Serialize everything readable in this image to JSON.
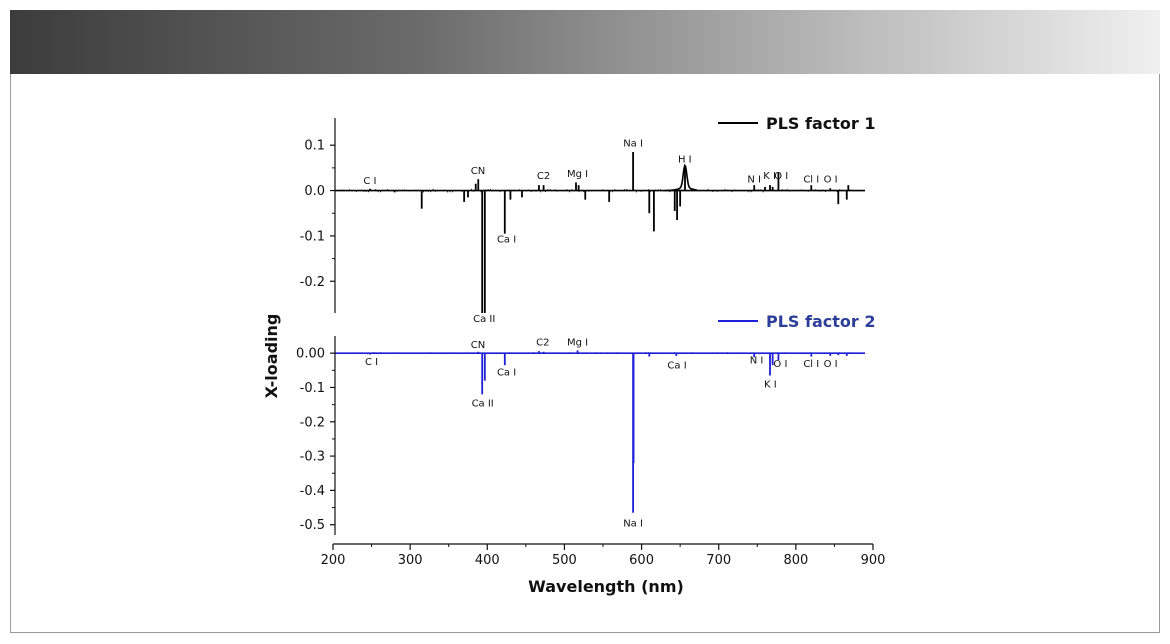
{
  "colors": {
    "series1": "#000000",
    "series2": "#1f1fd6",
    "legend2_text": "#2c3e9a"
  },
  "chart_data": {
    "type": "line",
    "xlabel": "Wavelength (nm)",
    "ylabel": "X-loading",
    "xlim": [
      200,
      900
    ],
    "xticks": [
      "200",
      "300",
      "400",
      "500",
      "600",
      "700",
      "800",
      "900"
    ],
    "panels": [
      {
        "name": "PLS factor 1",
        "ylim": [
          -0.27,
          0.16
        ],
        "yticks": [
          {
            "v": 0.1,
            "label": "0.1"
          },
          {
            "v": 0.0,
            "label": "0.0"
          },
          {
            "v": -0.1,
            "label": "-0.1"
          },
          {
            "v": -0.2,
            "label": "-0.2"
          }
        ],
        "peaks": [
          [
            247.9,
            0.004
          ],
          [
            280,
            -0.004
          ],
          [
            315,
            -0.04
          ],
          [
            370,
            -0.025
          ],
          [
            375,
            -0.015
          ],
          [
            385,
            0.015
          ],
          [
            388.3,
            0.025
          ],
          [
            393.4,
            -0.27
          ],
          [
            396.8,
            -0.27
          ],
          [
            422.7,
            -0.095
          ],
          [
            430,
            -0.02
          ],
          [
            445,
            -0.015
          ],
          [
            467,
            0.012
          ],
          [
            473,
            0.012
          ],
          [
            515,
            0.018
          ],
          [
            518.4,
            0.012
          ],
          [
            527,
            -0.02
          ],
          [
            558,
            -0.025
          ],
          [
            589,
            0.085
          ],
          [
            610,
            -0.05
          ],
          [
            616,
            -0.09
          ],
          [
            643,
            -0.045
          ],
          [
            646,
            -0.065
          ],
          [
            650,
            -0.035
          ],
          [
            656.3,
            0.05
          ],
          [
            746,
            0.012
          ],
          [
            760,
            0.008
          ],
          [
            766.5,
            0.012
          ],
          [
            769.9,
            0.008
          ],
          [
            777.4,
            0.04
          ],
          [
            820,
            0.012
          ],
          [
            844.6,
            0.005
          ],
          [
            855,
            -0.03
          ],
          [
            866,
            -0.02
          ],
          [
            868,
            0.012
          ]
        ],
        "annotations": [
          {
            "label": "C I",
            "x": 247.9,
            "y": 0.015
          },
          {
            "label": "CN",
            "x": 388,
            "y": 0.036
          },
          {
            "label": "Ca II",
            "x": 396,
            "y": -0.29
          },
          {
            "label": "Ca I",
            "x": 425,
            "y": -0.115
          },
          {
            "label": "C2",
            "x": 473,
            "y": 0.025
          },
          {
            "label": "Mg I",
            "x": 517,
            "y": 0.03
          },
          {
            "label": "Na I",
            "x": 589,
            "y": 0.097
          },
          {
            "label": "H I",
            "x": 656,
            "y": 0.062
          },
          {
            "label": "N I",
            "x": 746,
            "y": 0.018
          },
          {
            "label": "K I",
            "x": 766,
            "y": 0.026
          },
          {
            "label": "O I",
            "x": 781,
            "y": 0.026
          },
          {
            "label": "Cl I",
            "x": 820,
            "y": 0.018
          },
          {
            "label": "O I",
            "x": 845,
            "y": 0.018
          }
        ]
      },
      {
        "name": "PLS factor 2",
        "ylim": [
          -0.53,
          0.05
        ],
        "yticks": [
          {
            "v": 0.0,
            "label": "0.00"
          },
          {
            "v": -0.1,
            "label": "-0.1"
          },
          {
            "v": -0.2,
            "label": "-0.2"
          },
          {
            "v": -0.3,
            "label": "-0.3"
          },
          {
            "v": -0.4,
            "label": "-0.4"
          },
          {
            "v": -0.5,
            "label": "-0.5"
          }
        ],
        "peaks": [
          [
            247.9,
            -0.004
          ],
          [
            388.3,
            0.004
          ],
          [
            393.4,
            -0.12
          ],
          [
            396.8,
            -0.08
          ],
          [
            422.7,
            -0.035
          ],
          [
            467,
            0.006
          ],
          [
            473,
            0.004
          ],
          [
            517,
            0.008
          ],
          [
            589,
            -0.465
          ],
          [
            589.6,
            -0.32
          ],
          [
            610,
            -0.01
          ],
          [
            645,
            -0.008
          ],
          [
            746,
            -0.012
          ],
          [
            766.5,
            -0.065
          ],
          [
            769.9,
            -0.035
          ],
          [
            777.4,
            -0.02
          ],
          [
            820,
            -0.01
          ],
          [
            844.6,
            -0.008
          ],
          [
            855,
            -0.006
          ],
          [
            866,
            -0.008
          ]
        ],
        "annotations": [
          {
            "label": "C I",
            "x": 250,
            "y": -0.035
          },
          {
            "label": "CN",
            "x": 388,
            "y": 0.015
          },
          {
            "label": "Ca II",
            "x": 394,
            "y": -0.155
          },
          {
            "label": "Ca I",
            "x": 425,
            "y": -0.065
          },
          {
            "label": "C2",
            "x": 472,
            "y": 0.022
          },
          {
            "label": "Mg I",
            "x": 517,
            "y": 0.022
          },
          {
            "label": "Na I",
            "x": 589,
            "y": -0.505
          },
          {
            "label": "Ca I",
            "x": 646,
            "y": -0.045
          },
          {
            "label": "N I",
            "x": 749,
            "y": -0.03
          },
          {
            "label": "K I",
            "x": 767,
            "y": -0.1
          },
          {
            "label": "O I",
            "x": 780,
            "y": -0.04
          },
          {
            "label": "Cl I",
            "x": 820,
            "y": -0.04
          },
          {
            "label": "O I",
            "x": 845,
            "y": -0.04
          }
        ]
      }
    ]
  }
}
